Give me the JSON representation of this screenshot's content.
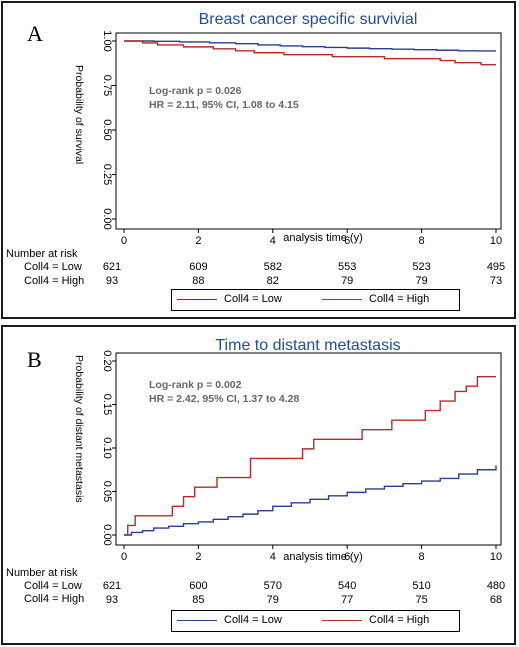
{
  "colors": {
    "low": "#2b3f8c",
    "high": "#b62b2b",
    "title": "#1f4e9e"
  },
  "chart_data": [
    {
      "panel": "A",
      "type": "line",
      "title": "Breast cancer specific survivial",
      "xlabel": "analysis time (y)",
      "ylabel": "Probability of survival",
      "xlim": [
        0,
        10
      ],
      "ylim": [
        0,
        1
      ],
      "xticks": [
        "0",
        "2",
        "4",
        "6",
        "8",
        "10"
      ],
      "yticks": [
        "0.00",
        "0.25",
        "0.50",
        "0.75",
        "1.00"
      ],
      "annotation": [
        "Log-rank p = 0.026",
        "HR = 2.11, 95% CI, 1.08 to 4.15"
      ],
      "series": [
        {
          "name": "Coll4 = Low",
          "x": [
            0,
            0.8,
            1.5,
            2.3,
            3.0,
            3.6,
            4.2,
            4.8,
            5.4,
            6.0,
            6.6,
            7.2,
            7.8,
            8.4,
            9.0,
            9.5,
            10
          ],
          "y": [
            1.0,
            0.998,
            0.995,
            0.99,
            0.985,
            0.978,
            0.972,
            0.968,
            0.964,
            0.96,
            0.957,
            0.954,
            0.951,
            0.948,
            0.945,
            0.944,
            0.944
          ]
        },
        {
          "name": "Coll4 = High",
          "x": [
            0,
            0.5,
            0.9,
            1.6,
            2.4,
            3.0,
            3.5,
            4.3,
            5.0,
            5.6,
            6.3,
            7.0,
            7.8,
            8.5,
            8.9,
            9.3,
            9.6,
            10
          ],
          "y": [
            1.0,
            0.989,
            0.978,
            0.967,
            0.956,
            0.945,
            0.934,
            0.923,
            0.923,
            0.912,
            0.912,
            0.901,
            0.901,
            0.89,
            0.878,
            0.878,
            0.867,
            0.867
          ]
        }
      ],
      "risk_table": {
        "header": "Number at risk",
        "rows": [
          {
            "label": "Coll4 = Low",
            "values": [
              "621",
              "609",
              "582",
              "553",
              "523",
              "495"
            ]
          },
          {
            "label": "Coll4 = High",
            "values": [
              "93",
              "88",
              "82",
              "79",
              "79",
              "73"
            ]
          }
        ]
      }
    },
    {
      "panel": "B",
      "type": "line",
      "title": "Time to distant metastasis",
      "xlabel": "analysis time (y)",
      "ylabel": "Probability of distant metastasis",
      "xlim": [
        0,
        10
      ],
      "ylim": [
        0,
        0.2
      ],
      "xticks": [
        "0",
        "2",
        "4",
        "6",
        "8",
        "10"
      ],
      "yticks": [
        "0.00",
        "0.05",
        "0.10",
        "0.15",
        "0.20"
      ],
      "annotation": [
        "Log-rank p = 0.002",
        "HR = 2.42, 95% CI, 1.37 to 4.28"
      ],
      "series": [
        {
          "name": "Coll4 = Low",
          "x": [
            0,
            0.2,
            0.5,
            0.8,
            1.2,
            1.6,
            2.0,
            2.4,
            2.8,
            3.2,
            3.6,
            4.0,
            4.5,
            5.0,
            5.5,
            6.0,
            6.5,
            7.0,
            7.5,
            8.0,
            8.5,
            9.0,
            9.5,
            10
          ],
          "y": [
            0,
            0.003,
            0.005,
            0.008,
            0.01,
            0.013,
            0.015,
            0.018,
            0.021,
            0.024,
            0.028,
            0.033,
            0.037,
            0.041,
            0.045,
            0.049,
            0.053,
            0.056,
            0.059,
            0.062,
            0.065,
            0.07,
            0.075,
            0.08
          ]
        },
        {
          "name": "Coll4 = High",
          "x": [
            0,
            0.1,
            0.3,
            1.3,
            1.6,
            1.9,
            2.5,
            3.4,
            4.8,
            5.1,
            6.4,
            7.2,
            8.1,
            8.5,
            8.9,
            9.2,
            9.5,
            10
          ],
          "y": [
            0,
            0.011,
            0.022,
            0.033,
            0.044,
            0.055,
            0.066,
            0.088,
            0.099,
            0.11,
            0.121,
            0.132,
            0.143,
            0.154,
            0.165,
            0.171,
            0.182,
            0.182
          ]
        }
      ],
      "risk_table": {
        "header": "Number at risk",
        "rows": [
          {
            "label": "Coll4 = Low",
            "values": [
              "621",
              "600",
              "570",
              "540",
              "510",
              "480"
            ]
          },
          {
            "label": "Coll4 = High",
            "values": [
              "93",
              "85",
              "79",
              "77",
              "75",
              "68"
            ]
          }
        ]
      }
    }
  ]
}
